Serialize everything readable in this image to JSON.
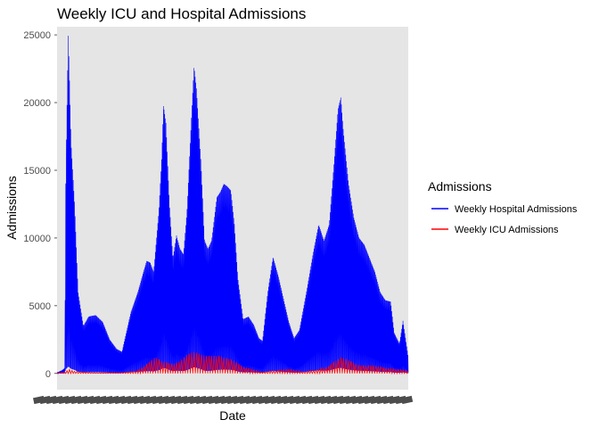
{
  "chart_data": {
    "type": "line",
    "title": "Weekly ICU and Hospital Admissions",
    "xlabel": "Date",
    "ylabel": "Admissions",
    "ylim": [
      -1200,
      25600
    ],
    "yticks": [
      0,
      5000,
      10000,
      15000,
      20000,
      25000
    ],
    "ytick_labels": [
      "0",
      "5000",
      "10000",
      "15000",
      "20000",
      "25000"
    ],
    "grid": false,
    "background": "#e5e5e5",
    "legend": {
      "title": "Admissions",
      "position": "right",
      "entries": [
        "Weekly Hospital Admissions",
        "Weekly ICU Admissions"
      ]
    },
    "x_tick_note": "overlapping date tick labels (illegible)",
    "x_tick_count": 60,
    "n_points": 1130,
    "series": [
      {
        "name": "Weekly Hospital Admissions",
        "color": "#0000ff",
        "style": "zigzag-dense",
        "envelope": [
          [
            0,
            50
          ],
          [
            0.015,
            250
          ],
          [
            0.022,
            400
          ],
          [
            0.025,
            15000
          ],
          [
            0.032,
            25100
          ],
          [
            0.04,
            17000
          ],
          [
            0.05,
            12500
          ],
          [
            0.06,
            6000
          ],
          [
            0.075,
            3500
          ],
          [
            0.09,
            4200
          ],
          [
            0.11,
            4300
          ],
          [
            0.13,
            3800
          ],
          [
            0.15,
            2500
          ],
          [
            0.17,
            1800
          ],
          [
            0.185,
            1600
          ],
          [
            0.19,
            2200
          ],
          [
            0.21,
            4500
          ],
          [
            0.23,
            6000
          ],
          [
            0.245,
            7400
          ],
          [
            0.255,
            8300
          ],
          [
            0.265,
            8200
          ],
          [
            0.275,
            7500
          ],
          [
            0.29,
            12000
          ],
          [
            0.298,
            16000
          ],
          [
            0.303,
            19800
          ],
          [
            0.31,
            18500
          ],
          [
            0.32,
            12500
          ],
          [
            0.33,
            8500
          ],
          [
            0.34,
            10200
          ],
          [
            0.35,
            9200
          ],
          [
            0.36,
            8800
          ],
          [
            0.37,
            12000
          ],
          [
            0.38,
            17500
          ],
          [
            0.39,
            22700
          ],
          [
            0.397,
            21000
          ],
          [
            0.41,
            15500
          ],
          [
            0.42,
            9800
          ],
          [
            0.43,
            9200
          ],
          [
            0.44,
            9800
          ],
          [
            0.455,
            13000
          ],
          [
            0.465,
            13400
          ],
          [
            0.475,
            14000
          ],
          [
            0.485,
            13800
          ],
          [
            0.495,
            13500
          ],
          [
            0.505,
            11000
          ],
          [
            0.515,
            7000
          ],
          [
            0.53,
            4000
          ],
          [
            0.545,
            4200
          ],
          [
            0.56,
            3600
          ],
          [
            0.575,
            2600
          ],
          [
            0.585,
            2400
          ],
          [
            0.6,
            6000
          ],
          [
            0.615,
            8600
          ],
          [
            0.63,
            7200
          ],
          [
            0.645,
            5500
          ],
          [
            0.66,
            3800
          ],
          [
            0.675,
            2600
          ],
          [
            0.69,
            3200
          ],
          [
            0.71,
            6000
          ],
          [
            0.73,
            9000
          ],
          [
            0.745,
            11000
          ],
          [
            0.76,
            9800
          ],
          [
            0.775,
            11000
          ],
          [
            0.79,
            16000
          ],
          [
            0.8,
            19500
          ],
          [
            0.808,
            20400
          ],
          [
            0.815,
            18000
          ],
          [
            0.83,
            14000
          ],
          [
            0.845,
            11500
          ],
          [
            0.86,
            10000
          ],
          [
            0.875,
            9500
          ],
          [
            0.89,
            8500
          ],
          [
            0.905,
            7500
          ],
          [
            0.92,
            6000
          ],
          [
            0.935,
            5400
          ],
          [
            0.95,
            5300
          ],
          [
            0.96,
            3000
          ],
          [
            0.975,
            2200
          ],
          [
            0.985,
            3900
          ],
          [
            1,
            1200
          ]
        ]
      },
      {
        "name": "Weekly ICU Admissions",
        "color": "#ff0000",
        "style": "spikes",
        "envelope": [
          [
            0,
            10
          ],
          [
            0.025,
            150
          ],
          [
            0.035,
            300
          ],
          [
            0.05,
            150
          ],
          [
            0.1,
            60
          ],
          [
            0.18,
            40
          ],
          [
            0.23,
            200
          ],
          [
            0.26,
            800
          ],
          [
            0.28,
            1200
          ],
          [
            0.3,
            900
          ],
          [
            0.33,
            700
          ],
          [
            0.35,
            900
          ],
          [
            0.37,
            1400
          ],
          [
            0.39,
            1600
          ],
          [
            0.42,
            1300
          ],
          [
            0.46,
            1300
          ],
          [
            0.5,
            1000
          ],
          [
            0.53,
            500
          ],
          [
            0.58,
            100
          ],
          [
            0.62,
            200
          ],
          [
            0.66,
            300
          ],
          [
            0.7,
            120
          ],
          [
            0.74,
            250
          ],
          [
            0.77,
            500
          ],
          [
            0.79,
            900
          ],
          [
            0.81,
            1200
          ],
          [
            0.83,
            1000
          ],
          [
            0.86,
            600
          ],
          [
            0.9,
            600
          ],
          [
            0.95,
            350
          ],
          [
            1,
            200
          ]
        ]
      }
    ]
  }
}
